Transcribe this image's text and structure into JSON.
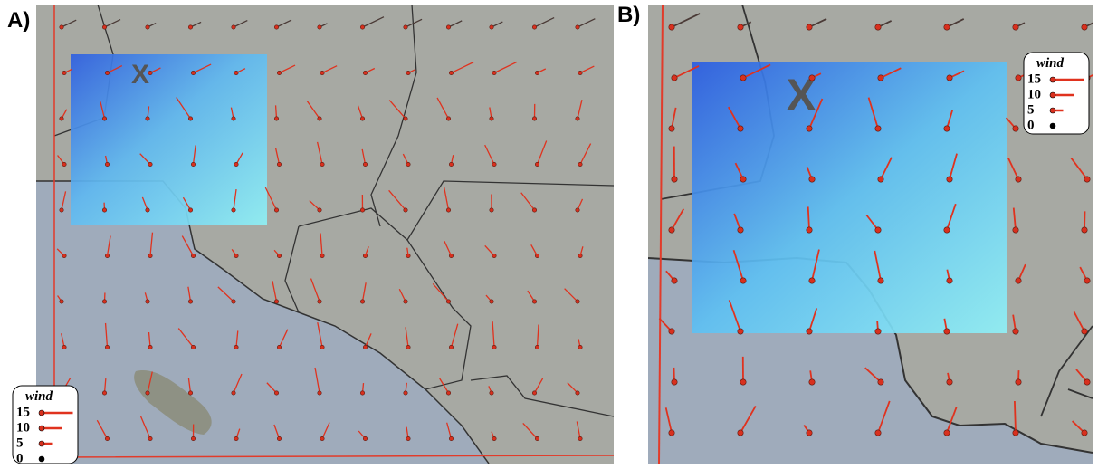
{
  "panels": [
    {
      "label": "A)",
      "legend": {
        "title": "wind",
        "entries": [
          15,
          10,
          5,
          0
        ]
      }
    },
    {
      "label": "B)",
      "legend": {
        "title": "wind",
        "entries": [
          15,
          10,
          5,
          0
        ]
      }
    }
  ]
}
